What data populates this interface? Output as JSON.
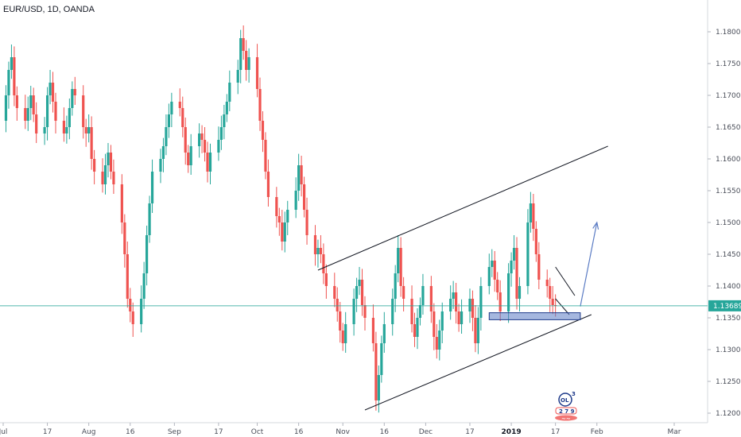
{
  "header": {
    "symbol": "EUR/USD, 1D, OANDA"
  },
  "colors": {
    "up": "#26a69a",
    "down": "#ef5350",
    "trendline": "#131722",
    "arrow": "#5b7cc4",
    "zone_fill": "#5b7cc4",
    "zone_border": "#1e3a8a",
    "last_price": "#26a69a",
    "axis_text": "#4a4e59"
  },
  "chart_data": {
    "type": "candlestick",
    "symbol": "EUR/USD",
    "interval": "1D",
    "source": "OANDA",
    "ylim": [
      1.1185,
      1.185
    ],
    "y_ticks": [
      "1.12000",
      "1.12500",
      "1.13000",
      "1.13500",
      "1.14000",
      "1.14500",
      "1.15000",
      "1.15500",
      "1.16000",
      "1.16500",
      "1.17000",
      "1.17500",
      "1.18000"
    ],
    "x_ticks": [
      {
        "label": "Jul",
        "date": "2018-07-01"
      },
      {
        "label": "17",
        "date": "2018-07-17"
      },
      {
        "label": "Aug",
        "date": "2018-08-01"
      },
      {
        "label": "16",
        "date": "2018-08-16"
      },
      {
        "label": "Sep",
        "date": "2018-09-01"
      },
      {
        "label": "17",
        "date": "2018-09-17"
      },
      {
        "label": "Oct",
        "date": "2018-10-01"
      },
      {
        "label": "16",
        "date": "2018-10-16"
      },
      {
        "label": "Nov",
        "date": "2018-11-01"
      },
      {
        "label": "16",
        "date": "2018-11-16"
      },
      {
        "label": "Dec",
        "date": "2018-12-01"
      },
      {
        "label": "17",
        "date": "2018-12-17"
      },
      {
        "label": "2019",
        "date": "2019-01-01",
        "bold": true
      },
      {
        "label": "17",
        "date": "2019-01-17"
      },
      {
        "label": "Feb",
        "date": "2019-02-01"
      },
      {
        "label": "Mar",
        "date": "2019-03-01"
      }
    ],
    "last_price": "1.13689",
    "last_price_value": 1.13689,
    "closes": [
      1.164,
      1.166,
      1.17,
      1.174,
      1.176,
      1.17,
      1.168,
      1.166,
      1.168,
      1.17,
      1.167,
      1.164,
      1.165,
      1.17,
      1.172,
      1.169,
      1.166,
      1.164,
      1.165,
      1.168,
      1.171,
      1.17,
      1.165,
      1.164,
      1.165,
      1.16,
      1.158,
      1.156,
      1.159,
      1.161,
      1.158,
      1.156,
      1.15,
      1.145,
      1.138,
      1.136,
      1.134,
      1.138,
      1.142,
      1.148,
      1.153,
      1.158,
      1.16,
      1.162,
      1.165,
      1.167,
      1.169,
      1.168,
      1.165,
      1.161,
      1.159,
      1.162,
      1.164,
      1.163,
      1.161,
      1.158,
      1.161,
      1.163,
      1.165,
      1.167,
      1.169,
      1.172,
      1.174,
      1.179,
      1.177,
      1.174,
      1.176,
      1.171,
      1.166,
      1.163,
      1.158,
      1.154,
      1.151,
      1.15,
      1.147,
      1.15,
      1.152,
      1.155,
      1.159,
      1.156,
      1.152,
      1.148,
      1.145,
      1.146,
      1.145,
      1.142,
      1.14,
      1.138,
      1.136,
      1.133,
      1.131,
      1.134,
      1.138,
      1.14,
      1.141,
      1.137,
      1.135,
      1.131,
      1.122,
      1.126,
      1.131,
      1.134,
      1.138,
      1.142,
      1.146,
      1.14,
      1.138,
      1.134,
      1.132,
      1.135,
      1.137,
      1.14,
      1.136,
      1.132,
      1.13,
      1.133,
      1.136,
      1.138,
      1.139,
      1.136,
      1.134,
      1.136,
      1.138,
      1.135,
      1.131,
      1.135,
      1.14,
      1.143,
      1.144,
      1.141,
      1.139,
      1.136,
      1.142,
      1.144,
      1.146,
      1.138,
      1.14,
      1.15,
      1.153,
      1.149,
      1.145,
      1.141,
      1.14,
      1.138,
      1.137,
      1.13689
    ],
    "annotations": {
      "channel_upper": {
        "from": [
          "2018-10-23",
          1.1425
        ],
        "to": [
          "2019-02-05",
          1.162
        ]
      },
      "channel_lower": {
        "from": [
          "2018-11-09",
          1.1205
        ],
        "to": [
          "2019-01-30",
          1.1355
        ]
      },
      "flag_upper": {
        "from": [
          "2019-01-17",
          1.143
        ],
        "to": [
          "2019-01-24",
          1.1385
        ]
      },
      "flag_lower": {
        "from": [
          "2019-01-17",
          1.138
        ],
        "to": [
          "2019-01-22",
          1.1355
        ]
      },
      "support_zone": {
        "from": "2018-12-24",
        "to": "2019-01-26",
        "low": 1.1347,
        "high": 1.1358
      },
      "projection_arrow": {
        "from": [
          "2019-01-26",
          1.1368
        ],
        "to": [
          "2019-02-01",
          1.15
        ]
      }
    }
  },
  "watermark": {
    "top": "OL",
    "sup": "3",
    "middle": "2 7 9",
    "bottom": "~~"
  }
}
